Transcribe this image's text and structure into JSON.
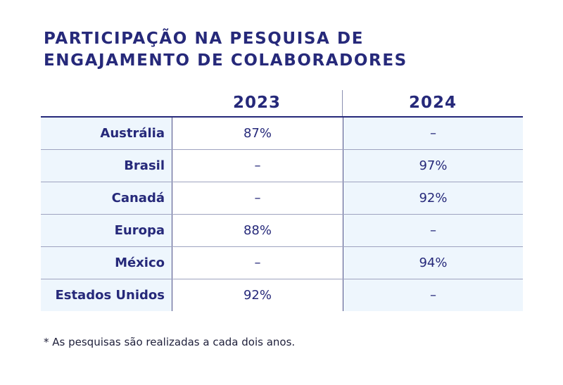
{
  "title_lines": [
    "PARTICIPAÇÃO NA PESQUISA DE",
    "ENGAJAMENTO DE COLABORADORES"
  ],
  "table": {
    "columns": [
      "2023",
      "2024"
    ],
    "rows": [
      {
        "label": "Austrália",
        "y2023": "87%",
        "y2024": "–"
      },
      {
        "label": "Brasil",
        "y2023": "–",
        "y2024": "97%"
      },
      {
        "label": "Canadá",
        "y2023": "–",
        "y2024": "92%"
      },
      {
        "label": "Europa",
        "y2023": "88%",
        "y2024": "–"
      },
      {
        "label": "México",
        "y2023": "–",
        "y2024": "94%"
      },
      {
        "label": "Estados Unidos",
        "y2023": "92%",
        "y2024": "–"
      }
    ]
  },
  "footnote": "* As pesquisas são realizadas a cada dois anos.",
  "colors": {
    "text": "#26297a",
    "row_shade": "#eef6fd"
  }
}
